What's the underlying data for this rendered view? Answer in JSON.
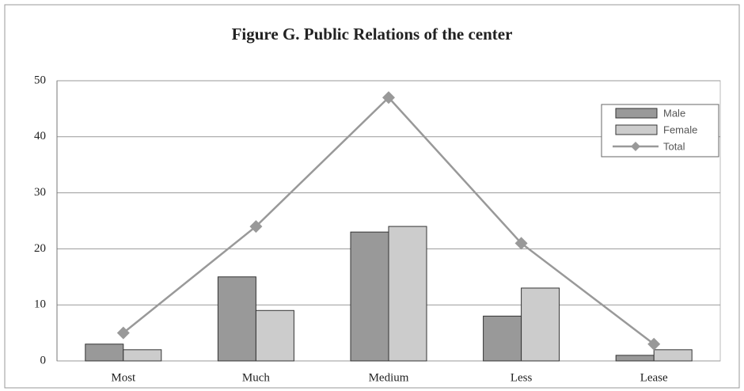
{
  "chart_data": {
    "type": "bar",
    "title": "Figure G. Public Relations of the center",
    "categories": [
      "Most",
      "Much",
      "Medium",
      "Less",
      "Lease"
    ],
    "series": [
      {
        "name": "Male",
        "color": "#999999",
        "values": [
          3,
          15,
          23,
          8,
          1
        ]
      },
      {
        "name": "Female",
        "color": "#cccccc",
        "values": [
          2,
          9,
          24,
          13,
          2
        ]
      },
      {
        "name": "Total",
        "type": "line",
        "color": "#999999",
        "values": [
          5,
          24,
          47,
          21,
          3
        ]
      }
    ],
    "ylim": [
      0,
      50
    ],
    "yticks": [
      0,
      10,
      20,
      30,
      40,
      50
    ],
    "grid": true,
    "legend": "upper right"
  }
}
